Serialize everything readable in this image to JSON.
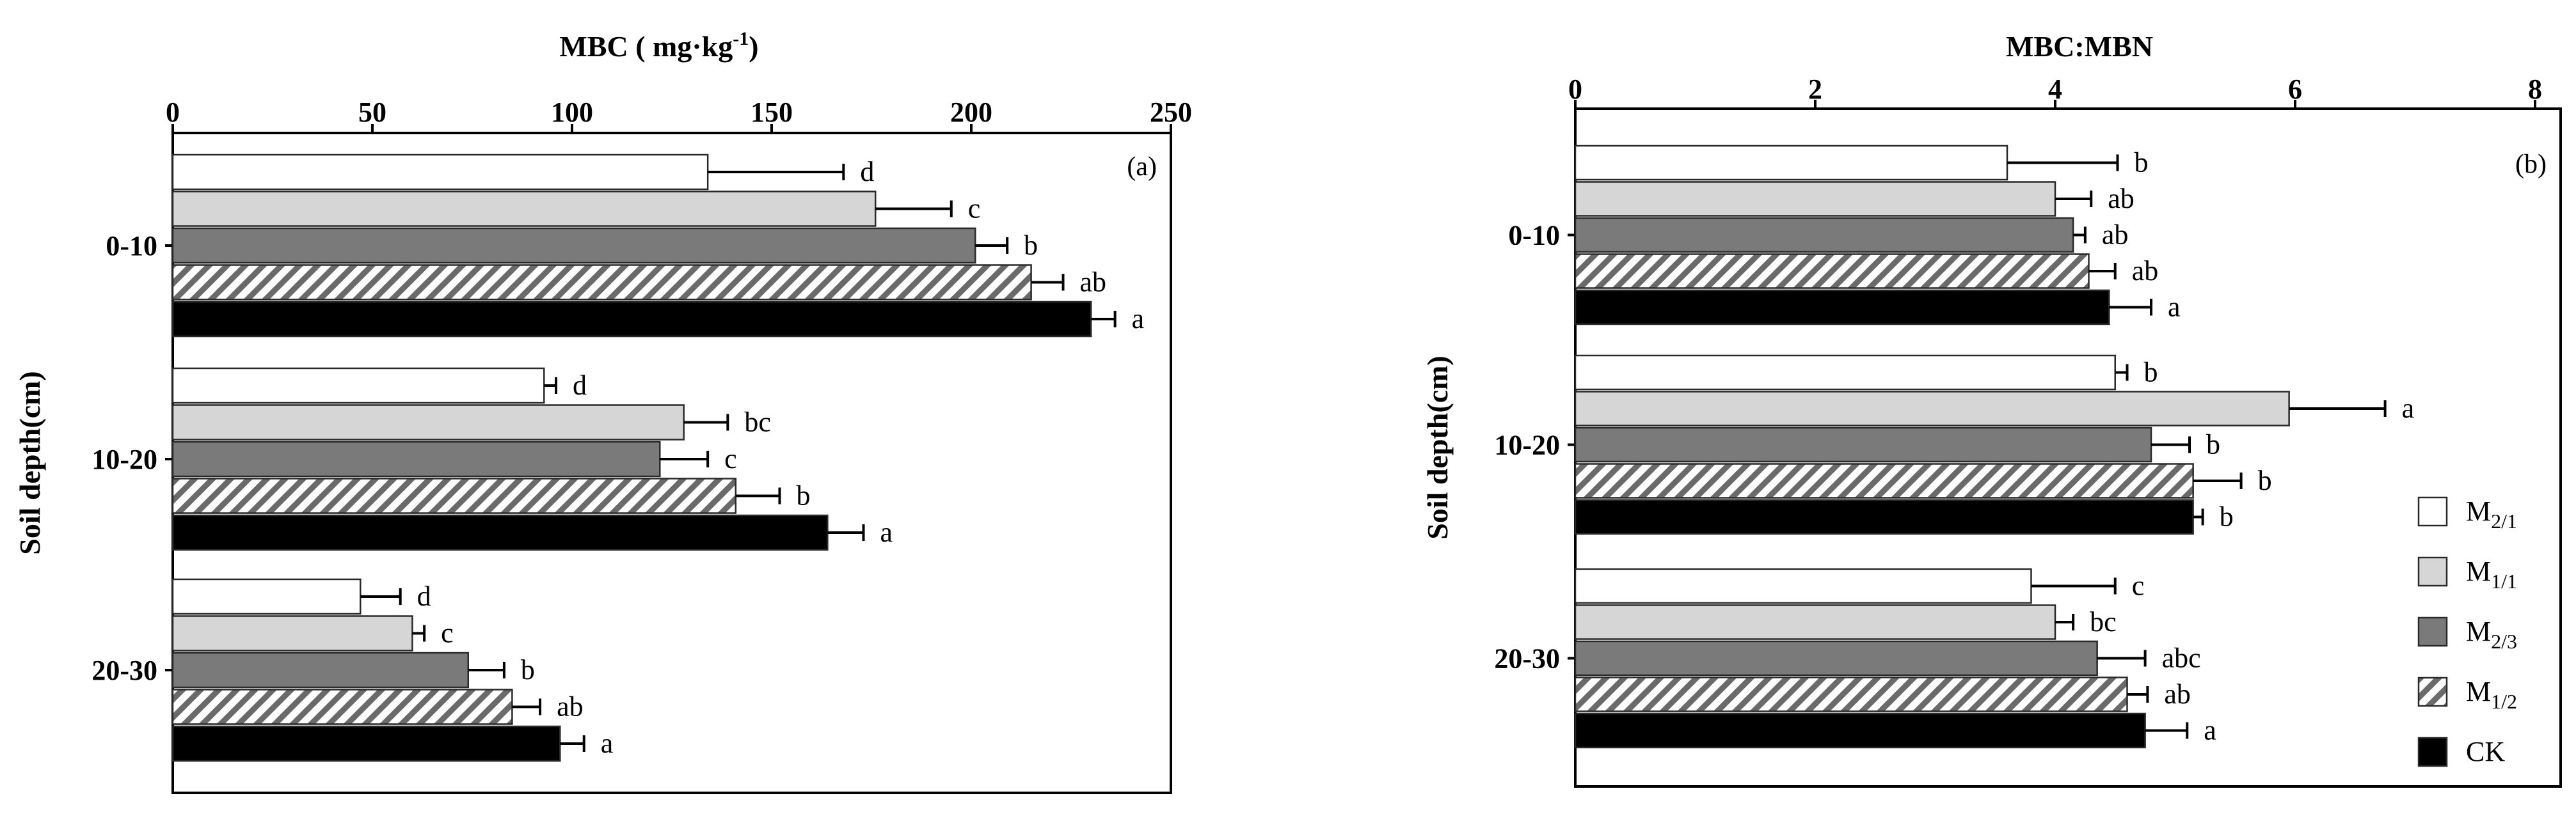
{
  "chart_data": [
    {
      "type": "bar",
      "orientation": "horizontal",
      "title": "MBC ( mg·kg-1)",
      "title_base": "MBC ( mg·kg",
      "title_sup": "-1",
      "title_end": ")",
      "ylabel": "Soil depth(cm)",
      "panel_label": "(a)",
      "xlim": [
        0,
        250
      ],
      "xticks": [
        "0",
        "50",
        "100",
        "150",
        "200",
        "250"
      ],
      "xtick_values": [
        0,
        50,
        100,
        150,
        200,
        250
      ],
      "categories": [
        "0-10",
        "10-20",
        "20-30"
      ],
      "series": [
        {
          "legend_key": "M2/1",
          "fill": "white",
          "values": [
            134,
            93,
            47
          ],
          "errors": [
            34,
            3,
            10
          ],
          "letters": [
            "d",
            "d",
            "d"
          ]
        },
        {
          "legend_key": "M1/1",
          "fill": "light-gray",
          "values": [
            176,
            128,
            60
          ],
          "errors": [
            19,
            11,
            3
          ],
          "letters": [
            "c",
            "bc",
            "c"
          ]
        },
        {
          "legend_key": "M2/3",
          "fill": "dark-gray",
          "values": [
            201,
            122,
            74
          ],
          "errors": [
            8,
            12,
            9
          ],
          "letters": [
            "b",
            "c",
            "b"
          ]
        },
        {
          "legend_key": "M1/2",
          "fill": "hatched",
          "values": [
            215,
            141,
            85
          ],
          "errors": [
            8,
            11,
            7
          ],
          "letters": [
            "ab",
            "b",
            "ab"
          ]
        },
        {
          "legend_key": "CK",
          "fill": "black",
          "values": [
            230,
            164,
            97
          ],
          "errors": [
            6,
            9,
            6
          ],
          "letters": [
            "a",
            "a",
            "a"
          ]
        }
      ]
    },
    {
      "type": "bar",
      "orientation": "horizontal",
      "title": "MBC:MBN",
      "ylabel": "Soil depth(cm)",
      "panel_label": "(b)",
      "xlim": [
        0,
        8
      ],
      "xticks": [
        "0",
        "2",
        "4",
        "6",
        "8"
      ],
      "xtick_values": [
        0,
        2,
        4,
        6,
        8
      ],
      "categories": [
        "0-10",
        "10-20",
        "20-30"
      ],
      "series": [
        {
          "legend_key": "M2/1",
          "fill": "white",
          "values": [
            3.6,
            4.5,
            3.8
          ],
          "errors": [
            0.92,
            0.1,
            0.7
          ],
          "letters": [
            "b",
            "b",
            "c"
          ]
        },
        {
          "legend_key": "M1/1",
          "fill": "light-gray",
          "values": [
            4.0,
            5.95,
            4.0
          ],
          "errors": [
            0.3,
            0.8,
            0.15
          ],
          "letters": [
            "ab",
            "a",
            "bc"
          ]
        },
        {
          "legend_key": "M2/3",
          "fill": "dark-gray",
          "values": [
            4.15,
            4.8,
            4.35
          ],
          "errors": [
            0.1,
            0.32,
            0.4
          ],
          "letters": [
            "ab",
            "b",
            "abc"
          ]
        },
        {
          "legend_key": "M1/2",
          "fill": "hatched",
          "values": [
            4.28,
            5.15,
            4.6
          ],
          "errors": [
            0.22,
            0.4,
            0.17
          ],
          "letters": [
            "ab",
            "b",
            "ab"
          ]
        },
        {
          "legend_key": "CK",
          "fill": "black",
          "values": [
            4.45,
            5.15,
            4.75
          ],
          "errors": [
            0.35,
            0.08,
            0.35
          ],
          "letters": [
            "a",
            "b",
            "a"
          ]
        }
      ]
    }
  ],
  "legend": {
    "placement": "right-bottom of panel b",
    "items": [
      {
        "key": "M2/1",
        "base": "M",
        "sub": "2/1",
        "fill": "white"
      },
      {
        "key": "M1/1",
        "base": "M",
        "sub": "1/1",
        "fill": "light-gray"
      },
      {
        "key": "M2/3",
        "base": "M",
        "sub": "2/3",
        "fill": "dark-gray"
      },
      {
        "key": "M1/2",
        "base": "M",
        "sub": "1/2",
        "fill": "hatched"
      },
      {
        "key": "CK",
        "base": "CK",
        "sub": "",
        "fill": "black"
      }
    ]
  },
  "colors": {
    "white": "#ffffff",
    "light-gray": "#d6d6d6",
    "dark-gray": "#7a7a7a",
    "black": "#000000",
    "hatch-bg": "#ffffff",
    "hatch-line": "#6a6a6a"
  }
}
